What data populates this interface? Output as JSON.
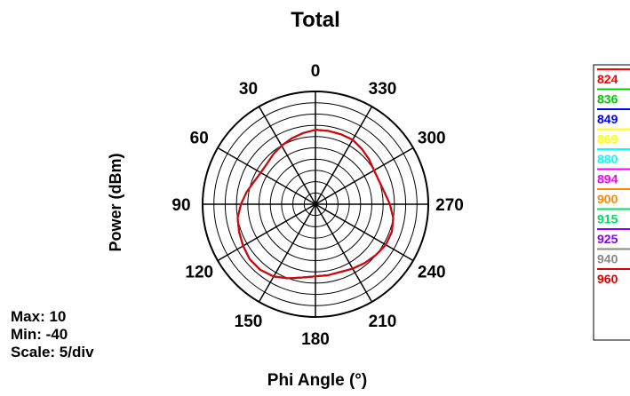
{
  "chart_data": {
    "type": "polar",
    "title": "Total",
    "xlabel": "Phi Angle (°)",
    "ylabel": "Power (dBm)",
    "angle_ticks": [
      "0",
      "30",
      "60",
      "90",
      "120",
      "150",
      "180",
      "210",
      "240",
      "270",
      "300",
      "330"
    ],
    "angle_direction": "counter-clockwise from top",
    "r_range": [
      -40,
      10
    ],
    "r_step": 5,
    "grid": true,
    "legend_position": "right",
    "stats": {
      "max": "Max: 10",
      "min": "Min: -40",
      "scale": "Scale: 5/div"
    },
    "series": [
      {
        "name": "824",
        "color": "#ff0000",
        "values": [
          -7,
          -8,
          -9,
          -10,
          -11,
          -12,
          -12,
          -11,
          -9,
          -7,
          -5,
          -4,
          -3,
          -2,
          -2,
          -3,
          -5,
          -7,
          -8,
          -8,
          -8,
          -7,
          -6,
          -5,
          -4,
          -4,
          -5,
          -7,
          -9,
          -10,
          -10,
          -9,
          -8,
          -7,
          -7,
          -7
        ]
      },
      {
        "name": "836",
        "color": "#00cc00",
        "values": [
          -7,
          -8,
          -9,
          -10,
          -11,
          -12,
          -12,
          -11,
          -9,
          -7,
          -5,
          -4,
          -3,
          -2,
          -2,
          -3,
          -5,
          -7,
          -8,
          -8,
          -8,
          -7,
          -6,
          -5,
          -4,
          -4,
          -5,
          -7,
          -9,
          -10,
          -10,
          -9,
          -8,
          -7,
          -7,
          -7
        ]
      },
      {
        "name": "849",
        "color": "#0000ff",
        "values": [
          -7,
          -8,
          -9,
          -10,
          -11,
          -12,
          -12,
          -11,
          -9,
          -7,
          -5,
          -4,
          -3,
          -2,
          -2,
          -3,
          -5,
          -7,
          -8,
          -8,
          -8,
          -7,
          -6,
          -5,
          -4,
          -4,
          -5,
          -7,
          -9,
          -10,
          -10,
          -9,
          -8,
          -7,
          -7,
          -7
        ]
      },
      {
        "name": "869",
        "color": "#ffff00",
        "values": [
          -7,
          -8,
          -9,
          -10,
          -11,
          -12,
          -12,
          -11,
          -9,
          -7,
          -5,
          -4,
          -3,
          -2,
          -2,
          -3,
          -5,
          -7,
          -8,
          -8,
          -8,
          -7,
          -6,
          -5,
          -4,
          -4,
          -5,
          -7,
          -9,
          -10,
          -10,
          -9,
          -8,
          -7,
          -7,
          -7
        ]
      },
      {
        "name": "880",
        "color": "#00ffff",
        "values": [
          -7,
          -8,
          -9,
          -10,
          -11,
          -12,
          -12,
          -11,
          -9,
          -7,
          -5,
          -4,
          -3,
          -2,
          -2,
          -3,
          -5,
          -7,
          -8,
          -8,
          -8,
          -7,
          -6,
          -5,
          -4,
          -4,
          -5,
          -7,
          -9,
          -10,
          -10,
          -9,
          -8,
          -7,
          -7,
          -7
        ]
      },
      {
        "name": "894",
        "color": "#ff00ff",
        "values": [
          -7,
          -8,
          -9,
          -10,
          -11,
          -12,
          -12,
          -11,
          -9,
          -7,
          -5,
          -4,
          -3,
          -2,
          -2,
          -3,
          -5,
          -7,
          -8,
          -8,
          -8,
          -7,
          -6,
          -5,
          -4,
          -4,
          -5,
          -7,
          -9,
          -10,
          -10,
          -9,
          -8,
          -7,
          -7,
          -7
        ]
      },
      {
        "name": "900",
        "color": "#ff8800",
        "values": [
          -7,
          -8,
          -9,
          -10,
          -11,
          -12,
          -12,
          -11,
          -9,
          -7,
          -5,
          -4,
          -3,
          -2,
          -2,
          -3,
          -5,
          -7,
          -8,
          -8,
          -8,
          -7,
          -6,
          -5,
          -4,
          -4,
          -5,
          -7,
          -9,
          -10,
          -10,
          -9,
          -8,
          -7,
          -7,
          -7
        ]
      },
      {
        "name": "915",
        "color": "#00dd66",
        "values": [
          -7,
          -8,
          -9,
          -10,
          -11,
          -12,
          -12,
          -11,
          -9,
          -7,
          -5,
          -4,
          -3,
          -2,
          -2,
          -3,
          -5,
          -7,
          -8,
          -8,
          -8,
          -7,
          -6,
          -5,
          -4,
          -4,
          -5,
          -7,
          -9,
          -10,
          -10,
          -9,
          -8,
          -7,
          -7,
          -7
        ]
      },
      {
        "name": "925",
        "color": "#8800ff",
        "values": [
          -7,
          -8,
          -9,
          -10,
          -11,
          -12,
          -12,
          -11,
          -9,
          -7,
          -5,
          -4,
          -3,
          -2,
          -2,
          -3,
          -5,
          -7,
          -8,
          -8,
          -8,
          -7,
          -6,
          -5,
          -4,
          -4,
          -5,
          -7,
          -9,
          -10,
          -10,
          -9,
          -8,
          -7,
          -7,
          -7
        ]
      },
      {
        "name": "940",
        "color": "#888888",
        "values": [
          -7,
          -8,
          -9,
          -10,
          -11,
          -12,
          -12,
          -11,
          -9,
          -7,
          -5,
          -4,
          -3,
          -2,
          -2,
          -3,
          -5,
          -7,
          -8,
          -8,
          -8,
          -7,
          -6,
          -5,
          -4,
          -4,
          -5,
          -7,
          -9,
          -10,
          -10,
          -9,
          -8,
          -7,
          -7,
          -7
        ]
      },
      {
        "name": "960",
        "color": "#dd0000",
        "values": [
          -7,
          -8,
          -9,
          -10,
          -11,
          -12,
          -12,
          -11,
          -9,
          -7,
          -5,
          -4,
          -3,
          -2,
          -2,
          -3,
          -5,
          -7,
          -8,
          -8,
          -8,
          -7,
          -6,
          -5,
          -4,
          -4,
          -5,
          -7,
          -9,
          -10,
          -10,
          -9,
          -8,
          -7,
          -7,
          -7
        ]
      }
    ],
    "angle_step_deg": 10
  }
}
